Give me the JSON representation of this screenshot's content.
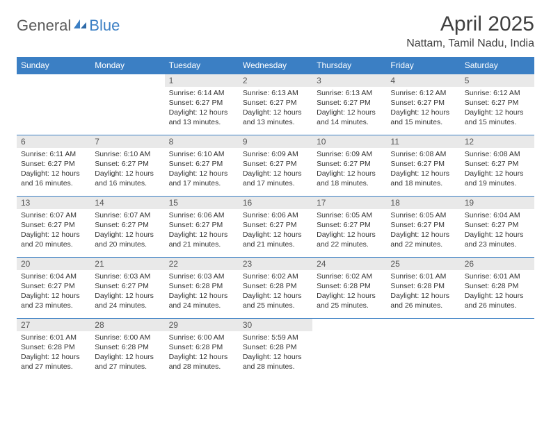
{
  "header": {
    "logo_general": "General",
    "logo_blue": "Blue",
    "month_title": "April 2025",
    "location": "Nattam, Tamil Nadu, India"
  },
  "colors": {
    "header_bg": "#3b7fc4",
    "header_text": "#ffffff",
    "daynum_bg": "#e9e9e9",
    "border": "#3b7fc4",
    "logo_blue": "#3b7fc4",
    "logo_gray": "#5a5a5a"
  },
  "weekdays": [
    "Sunday",
    "Monday",
    "Tuesday",
    "Wednesday",
    "Thursday",
    "Friday",
    "Saturday"
  ],
  "weeks": [
    [
      {
        "num": "",
        "sunrise": "",
        "sunset": "",
        "daylight": ""
      },
      {
        "num": "",
        "sunrise": "",
        "sunset": "",
        "daylight": ""
      },
      {
        "num": "1",
        "sunrise": "Sunrise: 6:14 AM",
        "sunset": "Sunset: 6:27 PM",
        "daylight": "Daylight: 12 hours and 13 minutes."
      },
      {
        "num": "2",
        "sunrise": "Sunrise: 6:13 AM",
        "sunset": "Sunset: 6:27 PM",
        "daylight": "Daylight: 12 hours and 13 minutes."
      },
      {
        "num": "3",
        "sunrise": "Sunrise: 6:13 AM",
        "sunset": "Sunset: 6:27 PM",
        "daylight": "Daylight: 12 hours and 14 minutes."
      },
      {
        "num": "4",
        "sunrise": "Sunrise: 6:12 AM",
        "sunset": "Sunset: 6:27 PM",
        "daylight": "Daylight: 12 hours and 15 minutes."
      },
      {
        "num": "5",
        "sunrise": "Sunrise: 6:12 AM",
        "sunset": "Sunset: 6:27 PM",
        "daylight": "Daylight: 12 hours and 15 minutes."
      }
    ],
    [
      {
        "num": "6",
        "sunrise": "Sunrise: 6:11 AM",
        "sunset": "Sunset: 6:27 PM",
        "daylight": "Daylight: 12 hours and 16 minutes."
      },
      {
        "num": "7",
        "sunrise": "Sunrise: 6:10 AM",
        "sunset": "Sunset: 6:27 PM",
        "daylight": "Daylight: 12 hours and 16 minutes."
      },
      {
        "num": "8",
        "sunrise": "Sunrise: 6:10 AM",
        "sunset": "Sunset: 6:27 PM",
        "daylight": "Daylight: 12 hours and 17 minutes."
      },
      {
        "num": "9",
        "sunrise": "Sunrise: 6:09 AM",
        "sunset": "Sunset: 6:27 PM",
        "daylight": "Daylight: 12 hours and 17 minutes."
      },
      {
        "num": "10",
        "sunrise": "Sunrise: 6:09 AM",
        "sunset": "Sunset: 6:27 PM",
        "daylight": "Daylight: 12 hours and 18 minutes."
      },
      {
        "num": "11",
        "sunrise": "Sunrise: 6:08 AM",
        "sunset": "Sunset: 6:27 PM",
        "daylight": "Daylight: 12 hours and 18 minutes."
      },
      {
        "num": "12",
        "sunrise": "Sunrise: 6:08 AM",
        "sunset": "Sunset: 6:27 PM",
        "daylight": "Daylight: 12 hours and 19 minutes."
      }
    ],
    [
      {
        "num": "13",
        "sunrise": "Sunrise: 6:07 AM",
        "sunset": "Sunset: 6:27 PM",
        "daylight": "Daylight: 12 hours and 20 minutes."
      },
      {
        "num": "14",
        "sunrise": "Sunrise: 6:07 AM",
        "sunset": "Sunset: 6:27 PM",
        "daylight": "Daylight: 12 hours and 20 minutes."
      },
      {
        "num": "15",
        "sunrise": "Sunrise: 6:06 AM",
        "sunset": "Sunset: 6:27 PM",
        "daylight": "Daylight: 12 hours and 21 minutes."
      },
      {
        "num": "16",
        "sunrise": "Sunrise: 6:06 AM",
        "sunset": "Sunset: 6:27 PM",
        "daylight": "Daylight: 12 hours and 21 minutes."
      },
      {
        "num": "17",
        "sunrise": "Sunrise: 6:05 AM",
        "sunset": "Sunset: 6:27 PM",
        "daylight": "Daylight: 12 hours and 22 minutes."
      },
      {
        "num": "18",
        "sunrise": "Sunrise: 6:05 AM",
        "sunset": "Sunset: 6:27 PM",
        "daylight": "Daylight: 12 hours and 22 minutes."
      },
      {
        "num": "19",
        "sunrise": "Sunrise: 6:04 AM",
        "sunset": "Sunset: 6:27 PM",
        "daylight": "Daylight: 12 hours and 23 minutes."
      }
    ],
    [
      {
        "num": "20",
        "sunrise": "Sunrise: 6:04 AM",
        "sunset": "Sunset: 6:27 PM",
        "daylight": "Daylight: 12 hours and 23 minutes."
      },
      {
        "num": "21",
        "sunrise": "Sunrise: 6:03 AM",
        "sunset": "Sunset: 6:27 PM",
        "daylight": "Daylight: 12 hours and 24 minutes."
      },
      {
        "num": "22",
        "sunrise": "Sunrise: 6:03 AM",
        "sunset": "Sunset: 6:28 PM",
        "daylight": "Daylight: 12 hours and 24 minutes."
      },
      {
        "num": "23",
        "sunrise": "Sunrise: 6:02 AM",
        "sunset": "Sunset: 6:28 PM",
        "daylight": "Daylight: 12 hours and 25 minutes."
      },
      {
        "num": "24",
        "sunrise": "Sunrise: 6:02 AM",
        "sunset": "Sunset: 6:28 PM",
        "daylight": "Daylight: 12 hours and 25 minutes."
      },
      {
        "num": "25",
        "sunrise": "Sunrise: 6:01 AM",
        "sunset": "Sunset: 6:28 PM",
        "daylight": "Daylight: 12 hours and 26 minutes."
      },
      {
        "num": "26",
        "sunrise": "Sunrise: 6:01 AM",
        "sunset": "Sunset: 6:28 PM",
        "daylight": "Daylight: 12 hours and 26 minutes."
      }
    ],
    [
      {
        "num": "27",
        "sunrise": "Sunrise: 6:01 AM",
        "sunset": "Sunset: 6:28 PM",
        "daylight": "Daylight: 12 hours and 27 minutes."
      },
      {
        "num": "28",
        "sunrise": "Sunrise: 6:00 AM",
        "sunset": "Sunset: 6:28 PM",
        "daylight": "Daylight: 12 hours and 27 minutes."
      },
      {
        "num": "29",
        "sunrise": "Sunrise: 6:00 AM",
        "sunset": "Sunset: 6:28 PM",
        "daylight": "Daylight: 12 hours and 28 minutes."
      },
      {
        "num": "30",
        "sunrise": "Sunrise: 5:59 AM",
        "sunset": "Sunset: 6:28 PM",
        "daylight": "Daylight: 12 hours and 28 minutes."
      },
      {
        "num": "",
        "sunrise": "",
        "sunset": "",
        "daylight": ""
      },
      {
        "num": "",
        "sunrise": "",
        "sunset": "",
        "daylight": ""
      },
      {
        "num": "",
        "sunrise": "",
        "sunset": "",
        "daylight": ""
      }
    ]
  ]
}
